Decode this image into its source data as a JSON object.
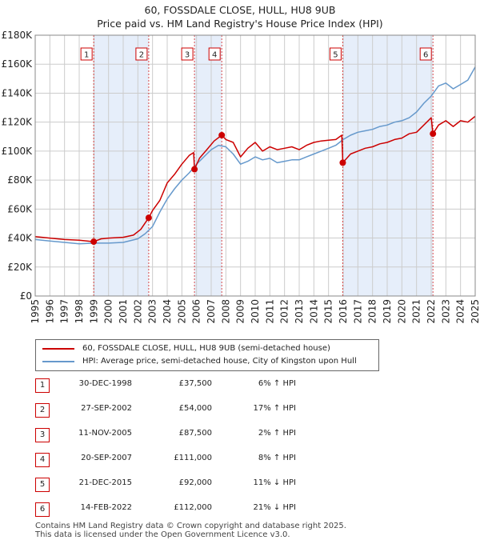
{
  "title": {
    "line1": "60, FOSSDALE CLOSE, HULL, HU8 9UB",
    "line2": "Price paid vs. HM Land Registry's House Price Index (HPI)"
  },
  "legend": {
    "property": "60, FOSSDALE CLOSE, HULL, HU8 9UB (semi-detached house)",
    "hpi": "HPI: Average price, semi-detached house, City of Kingston upon Hull"
  },
  "colors": {
    "property": "#cc0000",
    "hpi": "#6699cc",
    "shade": "#e6eefa",
    "grid": "#cccccc"
  },
  "sales": [
    {
      "num": "1",
      "date": "30-DEC-1998",
      "price": "£37,500",
      "hpi": "6% ↑ HPI"
    },
    {
      "num": "2",
      "date": "27-SEP-2002",
      "price": "£54,000",
      "hpi": "17% ↑ HPI"
    },
    {
      "num": "3",
      "date": "11-NOV-2005",
      "price": "£87,500",
      "hpi": "2% ↑ HPI"
    },
    {
      "num": "4",
      "date": "20-SEP-2007",
      "price": "£111,000",
      "hpi": "8% ↑ HPI"
    },
    {
      "num": "5",
      "date": "21-DEC-2015",
      "price": "£92,000",
      "hpi": "11% ↓ HPI"
    },
    {
      "num": "6",
      "date": "14-FEB-2022",
      "price": "£112,000",
      "hpi": "21% ↓ HPI"
    }
  ],
  "footer": {
    "line1": "Contains HM Land Registry data © Crown copyright and database right 2025.",
    "line2": "This data is licensed under the Open Government Licence v3.0."
  },
  "chart_data": {
    "type": "line",
    "xlim": [
      1995,
      2025
    ],
    "ylim": [
      0,
      180000
    ],
    "y_ticks": [
      0,
      20000,
      40000,
      60000,
      80000,
      100000,
      120000,
      140000,
      160000,
      180000
    ],
    "y_tick_labels": [
      "£0",
      "£20K",
      "£40K",
      "£60K",
      "£80K",
      "£100K",
      "£120K",
      "£140K",
      "£160K",
      "£180K"
    ],
    "x_ticks": [
      "1995",
      "1996",
      "1997",
      "1998",
      "1999",
      "2000",
      "2001",
      "2002",
      "2003",
      "2004",
      "2005",
      "2006",
      "2007",
      "2008",
      "2009",
      "2010",
      "2011",
      "2012",
      "2013",
      "2014",
      "2015",
      "2016",
      "2017",
      "2018",
      "2019",
      "2020",
      "2021",
      "2022",
      "2023",
      "2024",
      "2025"
    ],
    "grid": true,
    "legend_position": "below",
    "sale_markers": [
      {
        "label": "1",
        "x": 1998.99,
        "y": 37500
      },
      {
        "label": "2",
        "x": 2002.74,
        "y": 54000
      },
      {
        "label": "3",
        "x": 2005.86,
        "y": 87500
      },
      {
        "label": "4",
        "x": 2007.72,
        "y": 111000
      },
      {
        "label": "5",
        "x": 2015.97,
        "y": 92000
      },
      {
        "label": "6",
        "x": 2022.12,
        "y": 112000
      }
    ],
    "series": [
      {
        "name": "60, FOSSDALE CLOSE, HULL, HU8 9UB (semi-detached house)",
        "color": "#cc0000",
        "x": [
          1995,
          1996,
          1997,
          1998,
          1998.99,
          1999.5,
          2000,
          2001,
          2001.7,
          2002.2,
          2002.74,
          2003,
          2003.5,
          2004,
          2004.5,
          2005,
          2005.5,
          2005.8,
          2005.86,
          2006.2,
          2006.7,
          2007.2,
          2007.72,
          2008,
          2008.5,
          2009,
          2009.5,
          2010,
          2010.5,
          2011,
          2011.5,
          2012,
          2012.5,
          2013,
          2013.5,
          2014,
          2014.5,
          2015,
          2015.5,
          2015.9,
          2015.97,
          2016.5,
          2017,
          2017.5,
          2018,
          2018.5,
          2019,
          2019.5,
          2020,
          2020.5,
          2021,
          2021.5,
          2022.0,
          2022.12,
          2022.5,
          2023,
          2023.5,
          2024,
          2024.5,
          2025
        ],
        "values": [
          41000,
          40000,
          39000,
          38500,
          37500,
          39500,
          40000,
          40500,
          42000,
          46000,
          54000,
          59000,
          66000,
          78000,
          84000,
          91000,
          97000,
          99000,
          87500,
          95000,
          101000,
          107000,
          111000,
          108000,
          106000,
          96000,
          102000,
          106000,
          100000,
          103000,
          101000,
          102000,
          103000,
          101000,
          104000,
          106000,
          107000,
          107500,
          108000,
          111000,
          92000,
          98000,
          100000,
          102000,
          103000,
          105000,
          106000,
          108000,
          109000,
          112000,
          113000,
          118000,
          123000,
          112000,
          118000,
          121000,
          117000,
          121000,
          120000,
          124000
        ]
      },
      {
        "name": "HPI: Average price, semi-detached house, City of Kingston upon Hull",
        "color": "#6699cc",
        "x": [
          1995,
          1996,
          1997,
          1998,
          1999,
          2000,
          2001,
          2002,
          2002.5,
          2003,
          2003.5,
          2004,
          2004.5,
          2005,
          2005.5,
          2006,
          2006.5,
          2007,
          2007.5,
          2008,
          2008.5,
          2009,
          2009.5,
          2010,
          2010.5,
          2011,
          2011.5,
          2012,
          2012.5,
          2013,
          2013.5,
          2014,
          2014.5,
          2015,
          2015.5,
          2016,
          2016.5,
          2017,
          2017.5,
          2018,
          2018.5,
          2019,
          2019.5,
          2020,
          2020.5,
          2021,
          2021.5,
          2022,
          2022.5,
          2023,
          2023.5,
          2024,
          2024.5,
          2025
        ],
        "values": [
          39000,
          38000,
          37000,
          36000,
          36500,
          36500,
          37000,
          39500,
          43000,
          48000,
          58000,
          67000,
          74000,
          80000,
          85000,
          91000,
          96000,
          101000,
          104000,
          103000,
          98000,
          91000,
          93000,
          96000,
          94000,
          95000,
          92000,
          93000,
          94000,
          94000,
          96000,
          98000,
          100000,
          102000,
          104000,
          108000,
          111000,
          113000,
          114000,
          115000,
          117000,
          118000,
          120000,
          121000,
          123000,
          127000,
          133000,
          138000,
          145000,
          147000,
          143000,
          146000,
          149000,
          158000
        ]
      }
    ]
  }
}
